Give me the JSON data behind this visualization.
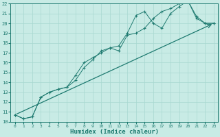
{
  "xlabel": "Humidex (Indice chaleur)",
  "xlim": [
    -0.5,
    23.5
  ],
  "ylim": [
    10,
    22
  ],
  "xticks": [
    0,
    1,
    2,
    3,
    4,
    5,
    6,
    7,
    8,
    9,
    10,
    11,
    12,
    13,
    14,
    15,
    16,
    17,
    18,
    19,
    20,
    21,
    22,
    23
  ],
  "yticks": [
    10,
    11,
    12,
    13,
    14,
    15,
    16,
    17,
    18,
    19,
    20,
    21,
    22
  ],
  "bg_color": "#c8ebe5",
  "line_color": "#1e7a70",
  "grid_color": "#a8d8d0",
  "line1_x": [
    0,
    1,
    2,
    3,
    4,
    5,
    6,
    7,
    8,
    9,
    10,
    11,
    12,
    13,
    14,
    15,
    16,
    17,
    18,
    19,
    20,
    21,
    22,
    23
  ],
  "line1_y": [
    10.7,
    10.3,
    10.5,
    12.5,
    13.0,
    13.3,
    13.5,
    14.2,
    15.5,
    16.3,
    17.2,
    17.5,
    17.7,
    19.0,
    20.8,
    21.2,
    20.0,
    19.5,
    21.0,
    21.7,
    22.3,
    20.7,
    20.0,
    20.0
  ],
  "line2_x": [
    0,
    1,
    2,
    3,
    4,
    5,
    6,
    7,
    8,
    9,
    10,
    11,
    12,
    13,
    14,
    15,
    16,
    17,
    18,
    19,
    20,
    21,
    22,
    23
  ],
  "line2_y": [
    10.7,
    10.3,
    10.5,
    12.5,
    13.0,
    13.3,
    13.5,
    14.7,
    16.0,
    16.5,
    17.0,
    17.5,
    17.2,
    18.8,
    19.0,
    19.5,
    20.5,
    21.2,
    21.5,
    22.0,
    22.3,
    20.5,
    20.0,
    20.0
  ],
  "line3_x": [
    0,
    23
  ],
  "line3_y": [
    10.7,
    20.0
  ],
  "marker_size": 2.5,
  "lw": 0.7,
  "xlabel_fontsize": 6.5,
  "tick_fontsize": 5.5
}
